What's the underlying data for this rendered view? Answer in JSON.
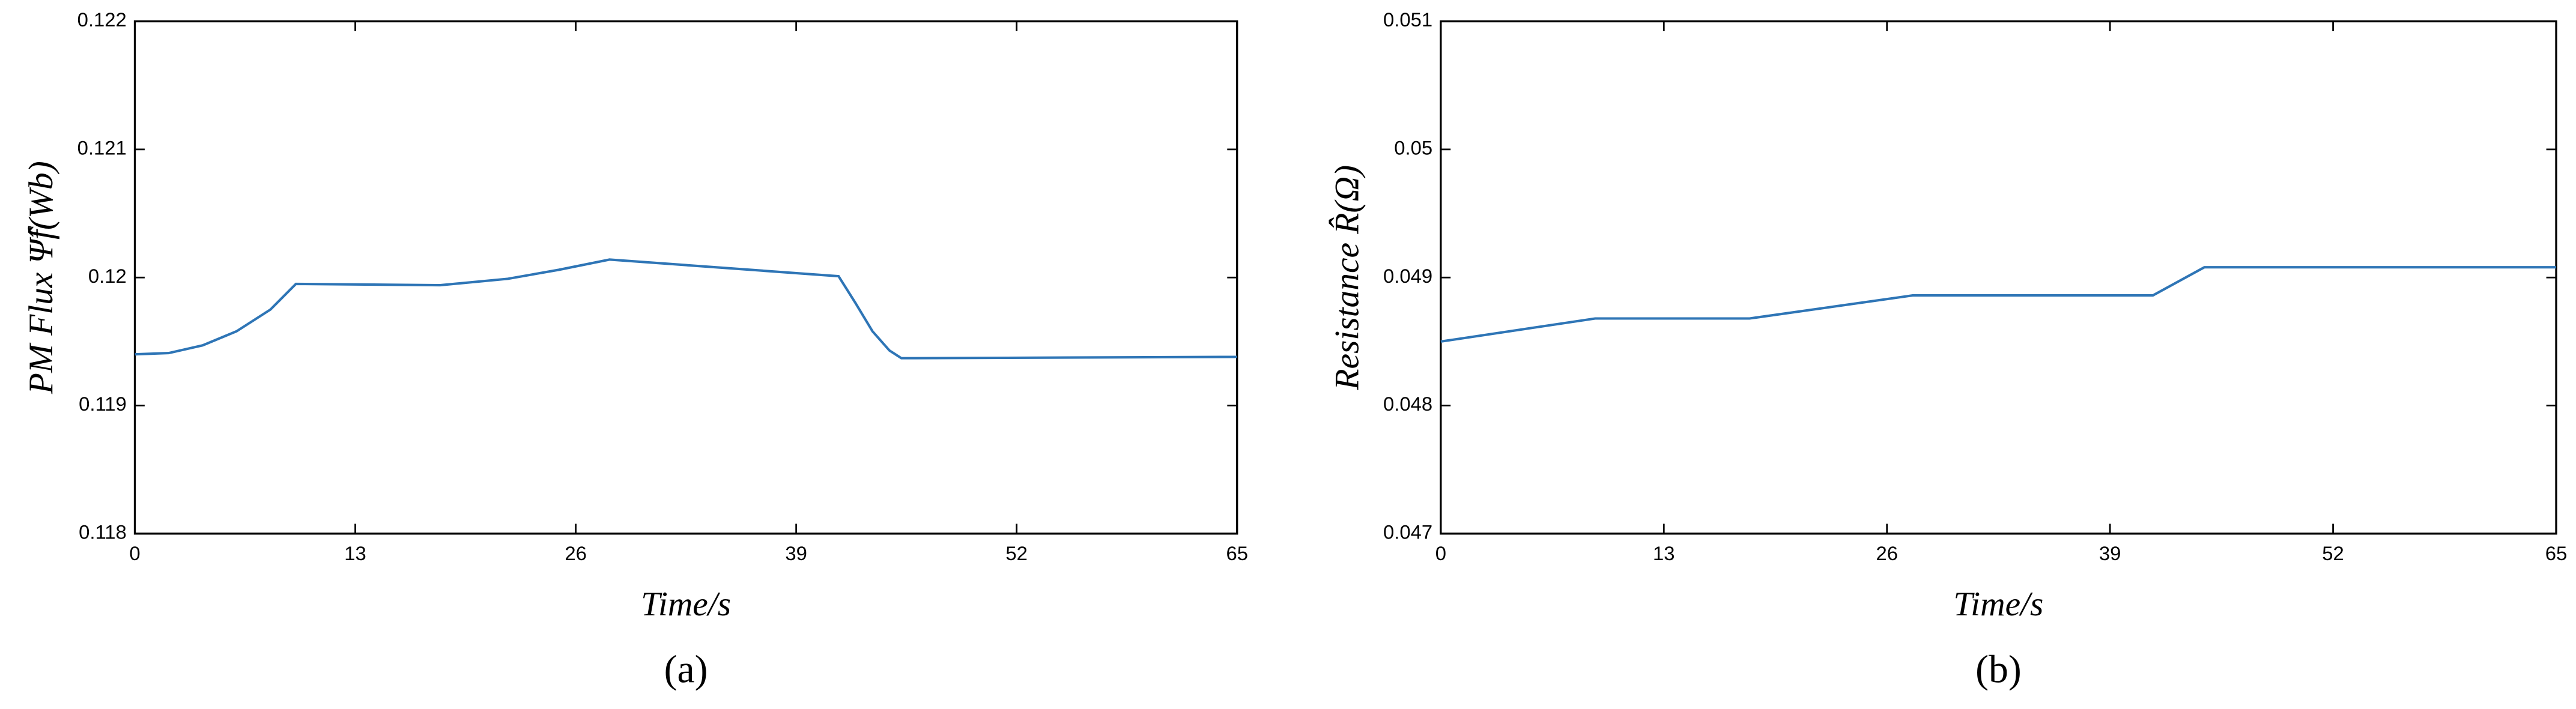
{
  "chart_data": [
    {
      "type": "line",
      "xlabel": "Time/s",
      "ylabel": "PM Flux Ψ̂f(Wb)",
      "caption": "(a)",
      "x": [
        0,
        2,
        4,
        6,
        8,
        9.5,
        18,
        22,
        25,
        28,
        41.5,
        42.5,
        43.5,
        44.5,
        45.2,
        46,
        65
      ],
      "values": [
        0.1194,
        0.11941,
        0.11947,
        0.11958,
        0.11975,
        0.11995,
        0.11994,
        0.11999,
        0.12006,
        0.12014,
        0.12001,
        0.1198,
        0.11958,
        0.11943,
        0.11937,
        0.11937,
        0.11938
      ],
      "color": "#2e75b6",
      "xlim": [
        0,
        65
      ],
      "xticks": [
        0,
        13,
        26,
        39,
        52,
        65
      ],
      "ylim": [
        0.118,
        0.122
      ],
      "yticks": [
        0.118,
        0.119,
        0.12,
        0.121,
        0.122
      ]
    },
    {
      "type": "line",
      "xlabel": "Time/s",
      "ylabel": "Resistance R̂(Ω)",
      "caption": "(b)",
      "x": [
        0,
        9,
        18,
        27.5,
        41.5,
        44.5,
        65
      ],
      "values": [
        0.0485,
        0.04868,
        0.04868,
        0.04886,
        0.04886,
        0.04908,
        0.04908
      ],
      "color": "#2e75b6",
      "xlim": [
        0,
        65
      ],
      "xticks": [
        0,
        13,
        26,
        39,
        52,
        65
      ],
      "ylim": [
        0.047,
        0.051
      ],
      "yticks": [
        0.047,
        0.048,
        0.049,
        0.05,
        0.051
      ]
    }
  ]
}
